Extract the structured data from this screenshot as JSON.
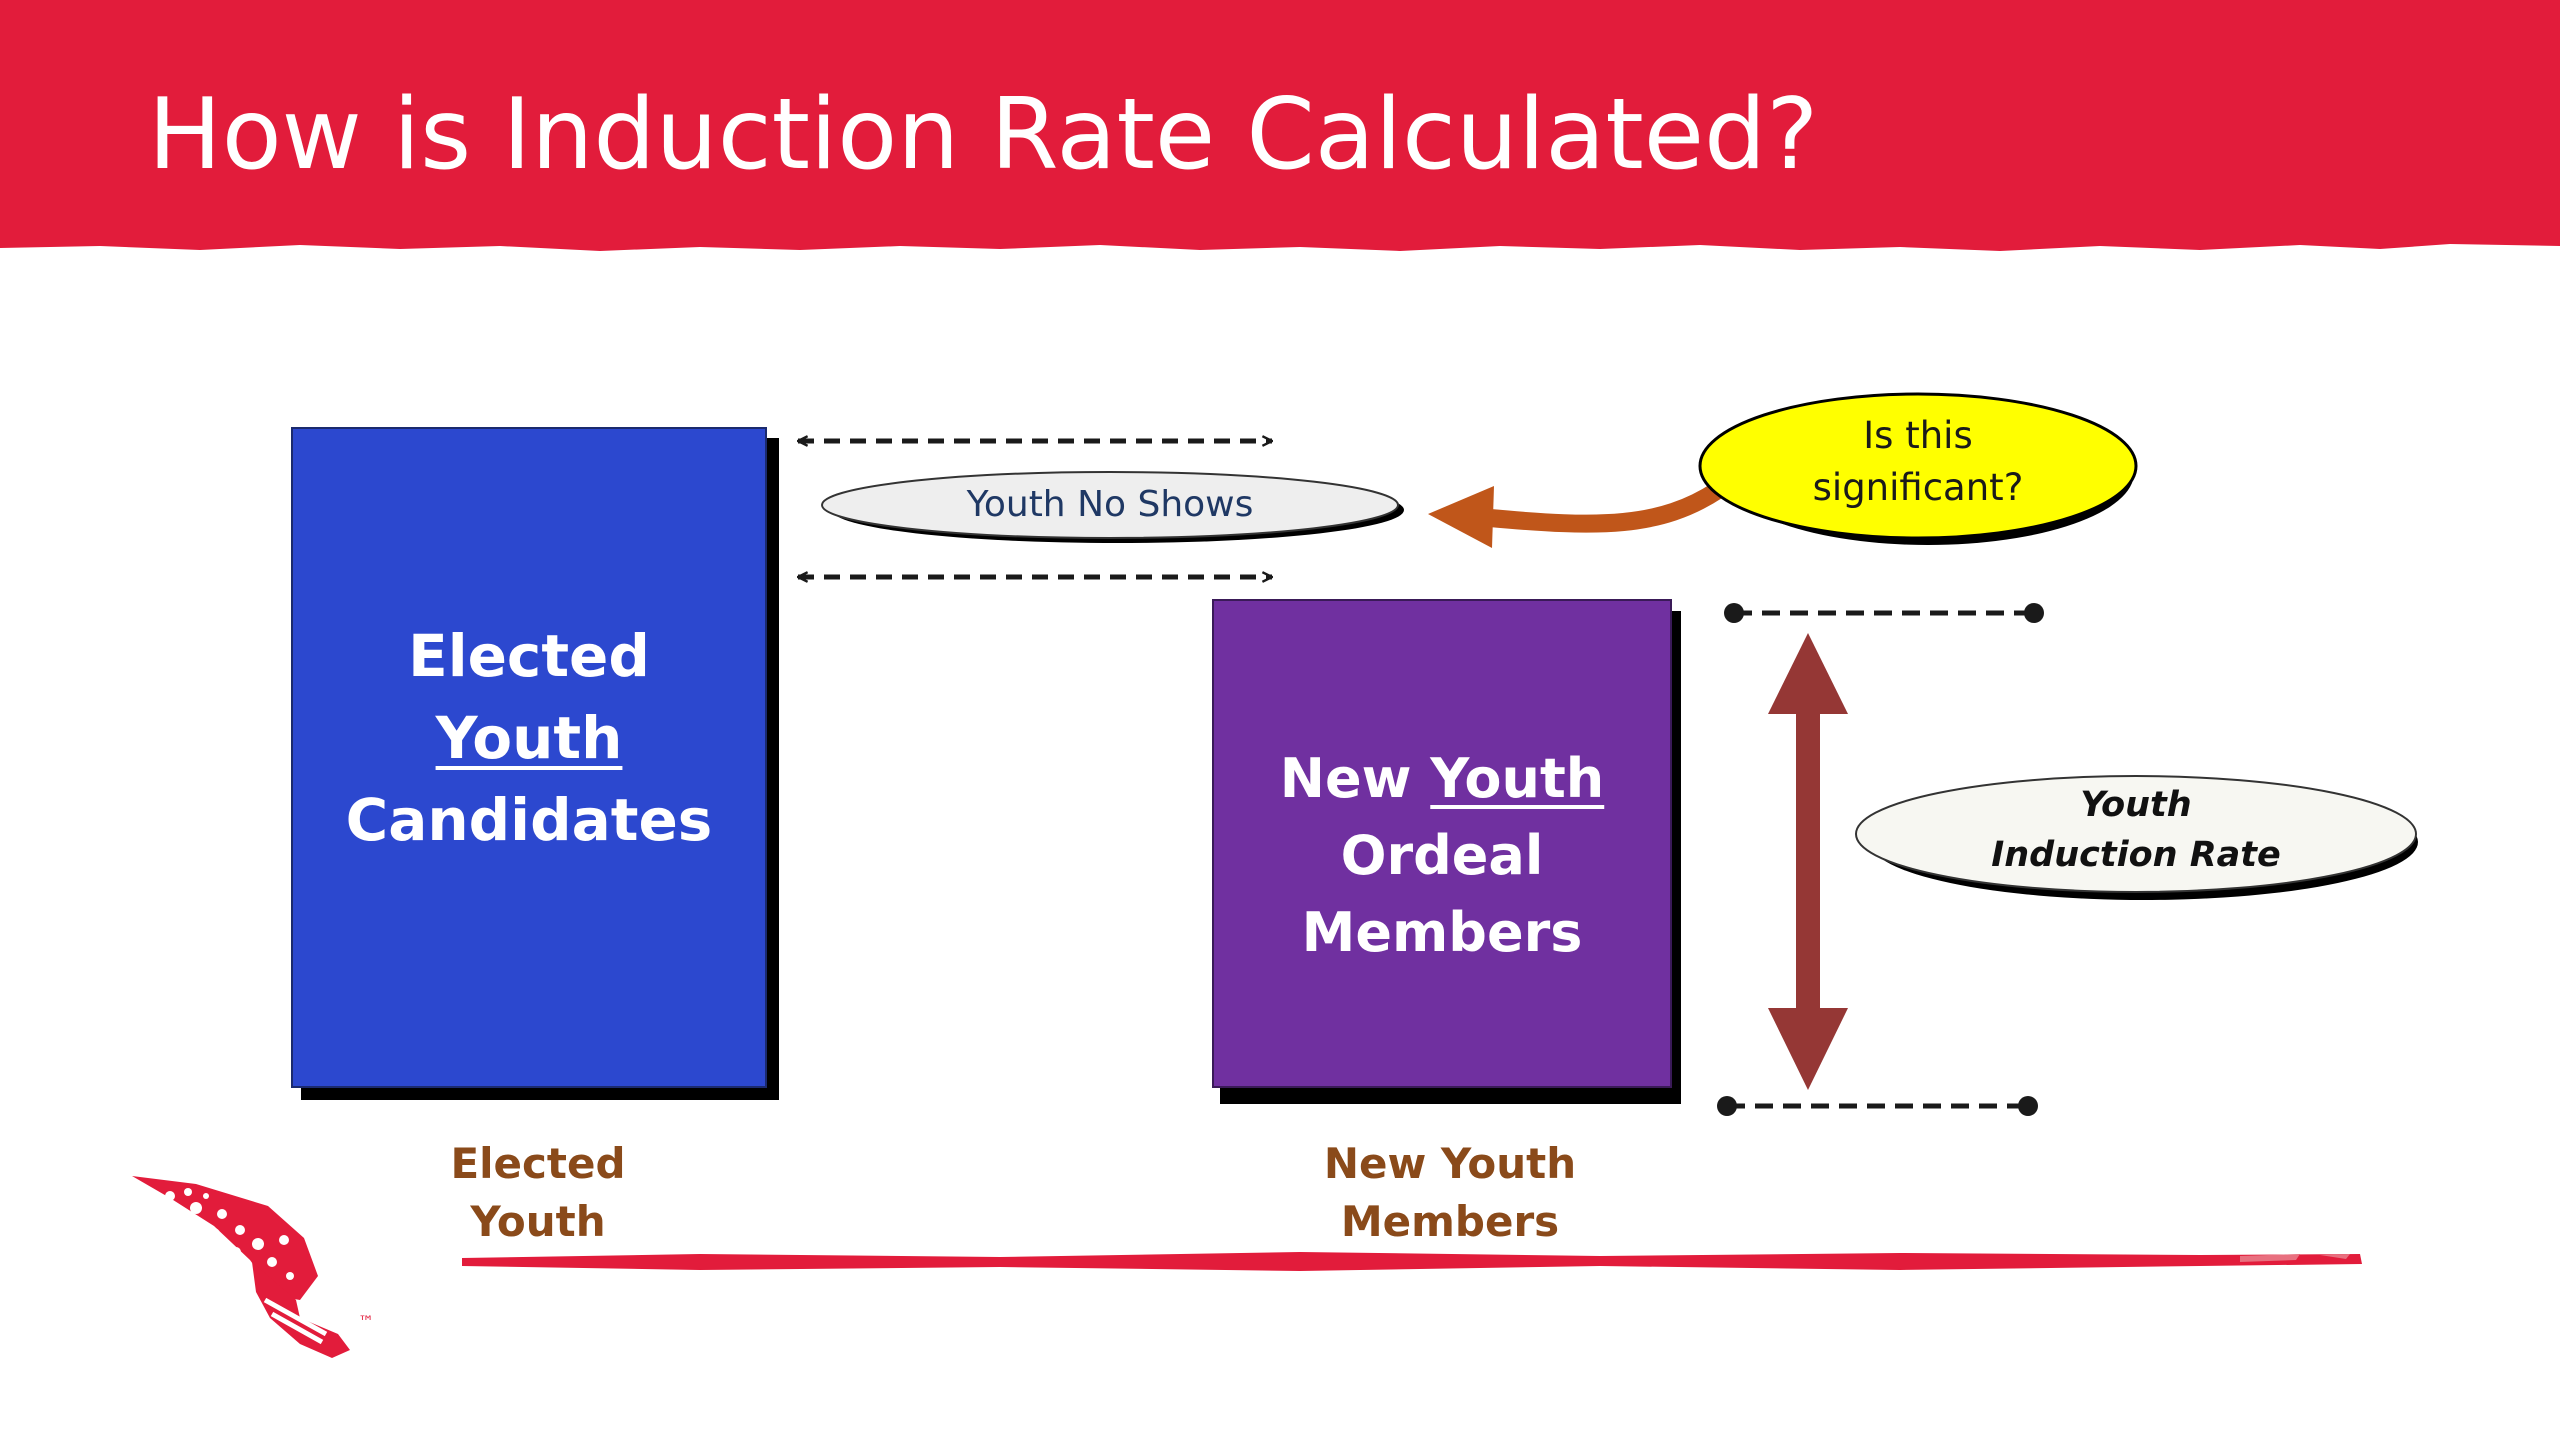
{
  "title": "How is Induction Rate Calculated?",
  "colors": {
    "title_band": "#e21c3b",
    "elected_box": "#2c48cf",
    "ordeal_box": "#7030a0",
    "callout_fill": "#ffff00",
    "curved_arrow": "#c0561a",
    "rate_arrow": "#953735",
    "label_brown": "#8a4a1a",
    "no_shows_text": "#1f3864"
  },
  "elected_box": {
    "line1": "Elected",
    "line2": "Youth",
    "line3": "Candidates"
  },
  "ordeal_box": {
    "line1_prefix": "New ",
    "line1_underlined": "Youth",
    "line2": "Ordeal",
    "line3": "Members"
  },
  "no_shows_label": "Youth No Shows",
  "callout": {
    "line1": "Is this",
    "line2": "significant?"
  },
  "rate_label": {
    "line1": "Youth",
    "line2": "Induction Rate"
  },
  "bottom_labels": {
    "elected_line1": "Elected",
    "elected_line2": "Youth",
    "members_line1": "New Youth",
    "members_line2": "Members"
  },
  "logo": {
    "icon": "arrowhead-logo-icon",
    "mark": "™"
  }
}
